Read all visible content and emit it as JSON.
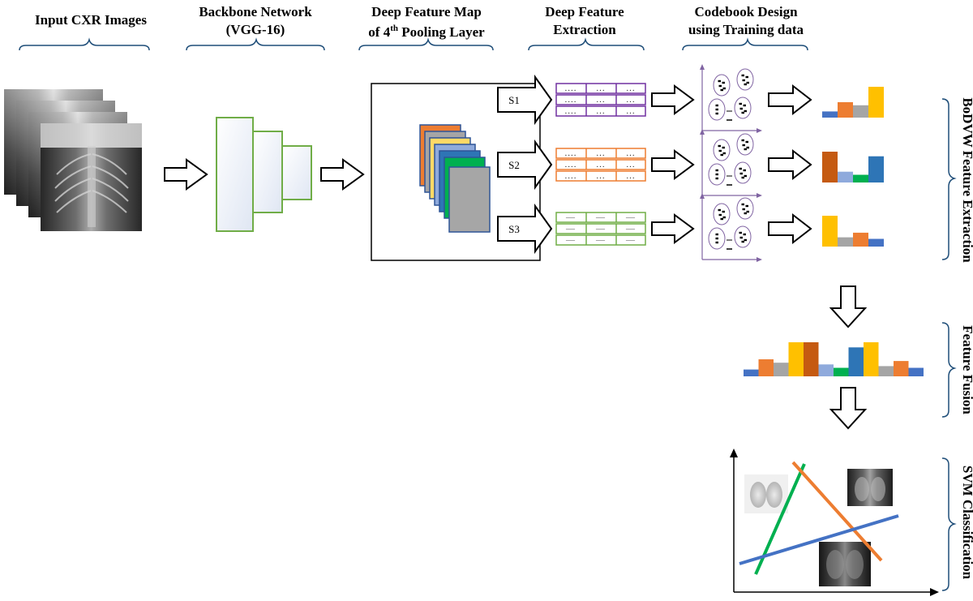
{
  "headers": {
    "input": "Input CXR Images",
    "backbone_1": "Backbone Network",
    "backbone_2": "(VGG-16)",
    "featmap_1": "Deep Feature Map",
    "featmap_2_pre": "of 4",
    "featmap_2_sup": "th",
    "featmap_2_post": " Pooling Layer",
    "extract_1": "Deep Feature",
    "extract_2": "Extraction",
    "codebook_1": "Codebook Design",
    "codebook_2": "using Training data"
  },
  "side_labels": {
    "bodvw": "BoDVW Feature Extraction",
    "fusion": "Feature Fusion",
    "svm": "SVM Classification"
  },
  "streams": [
    {
      "label": "S1",
      "color": "#7030A0",
      "cell_text": "....",
      "cell_text_short": "..."
    },
    {
      "label": "S2",
      "color": "#ED7D31",
      "cell_text": "....",
      "cell_text_short": "..."
    },
    {
      "label": "S3",
      "color": "#70AD47",
      "cell_text": "—",
      "cell_text_short": "—"
    }
  ],
  "colors": {
    "blue": "#4472C4",
    "orange": "#ED7D31",
    "gray": "#A5A5A5",
    "gold": "#FFC000",
    "brown": "#C55A11",
    "lightblue": "#8FAADC",
    "green": "#00B050",
    "navy": "#2E75B6",
    "network_green": "#70AD47",
    "axis_purple": "#8064A2"
  },
  "histograms": {
    "s1": [
      0.2,
      0.5,
      0.4,
      1.0
    ],
    "s2": [
      1.0,
      0.35,
      0.25,
      0.85
    ],
    "s3": [
      1.0,
      0.3,
      0.45,
      0.25
    ],
    "fused": [
      0.2,
      0.5,
      0.4,
      1.0,
      1.0,
      0.35,
      0.25,
      0.85,
      1.0,
      0.3,
      0.45,
      0.25
    ]
  }
}
